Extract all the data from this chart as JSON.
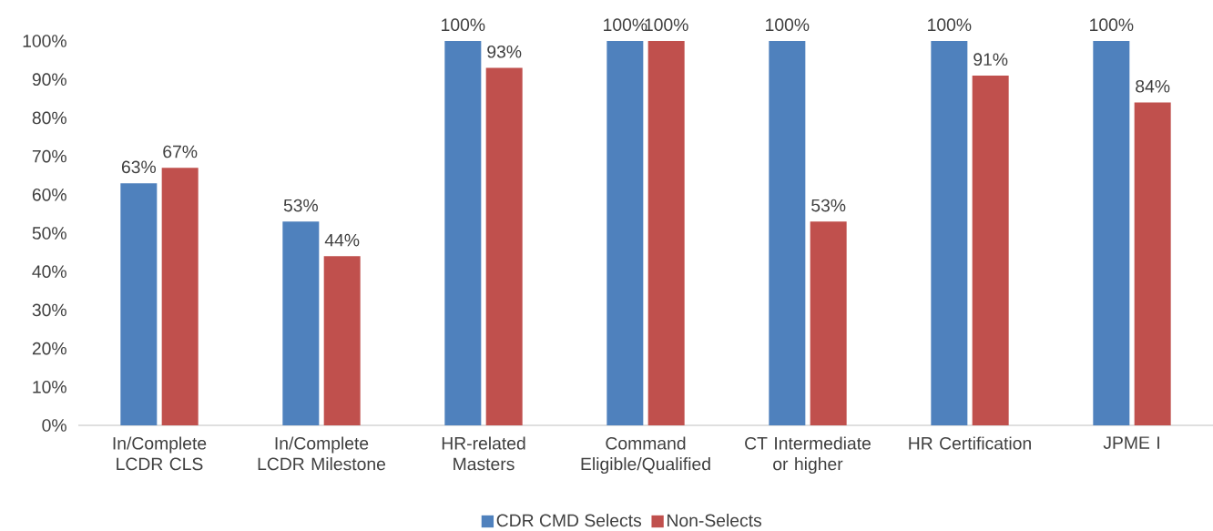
{
  "chart_data": {
    "type": "bar",
    "categories": [
      "In/Complete LCDR CLS",
      "In/Complete LCDR Milestone",
      "HR-related Masters",
      "Command Eligible/Qualified",
      "CT Intermediate or higher",
      "HR Certification",
      "JPME I"
    ],
    "series": [
      {
        "name": "CDR CMD Selects",
        "color": "#4f81bd",
        "values": [
          63,
          53,
          100,
          100,
          100,
          100,
          100
        ],
        "value_labels": [
          "63%",
          "53%",
          "100%",
          "100%",
          "100%",
          "100%",
          "100%"
        ]
      },
      {
        "name": "Non-Selects",
        "color": "#c0504d",
        "values": [
          67,
          44,
          93,
          100,
          53,
          91,
          84
        ],
        "value_labels": [
          "67%",
          "44%",
          "93%",
          "100%",
          "53%",
          "91%",
          "84%"
        ]
      }
    ],
    "ylim": [
      0,
      100
    ],
    "yticks": [
      {
        "value": 0,
        "label": "0%"
      },
      {
        "value": 10,
        "label": "10%"
      },
      {
        "value": 20,
        "label": "20%"
      },
      {
        "value": 30,
        "label": "30%"
      },
      {
        "value": 40,
        "label": "40%"
      },
      {
        "value": 50,
        "label": "50%"
      },
      {
        "value": 60,
        "label": "60%"
      },
      {
        "value": 70,
        "label": "70%"
      },
      {
        "value": 80,
        "label": "80%"
      },
      {
        "value": 90,
        "label": "90%"
      },
      {
        "value": 100,
        "label": "100%"
      }
    ],
    "grid": false,
    "legend": "bottom"
  }
}
